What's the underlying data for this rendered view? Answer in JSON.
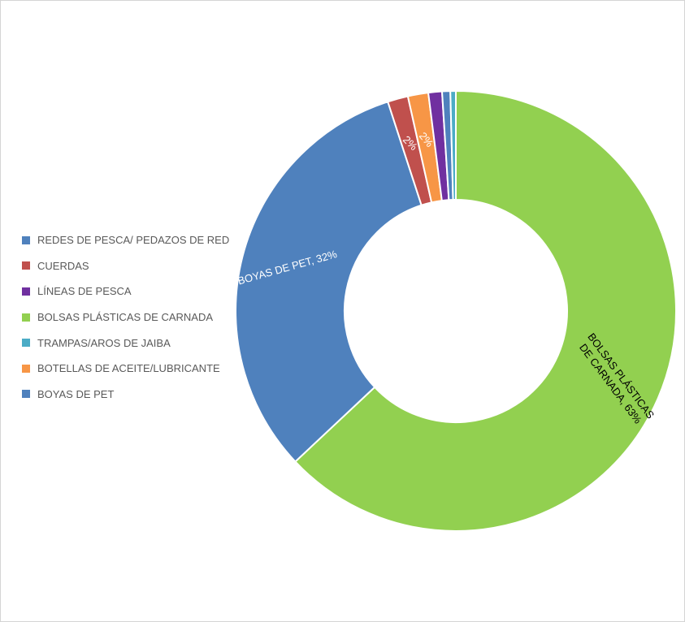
{
  "chart_data": {
    "type": "pie",
    "donut": true,
    "legend_position": "left",
    "slices": [
      {
        "label": "BOLSAS PLÁSTICAS DE CARNADA",
        "value": 63,
        "color": "#92d050",
        "data_label": [
          "BOLSAS PLÁSTICAS",
          "DE CARNADA, 63%"
        ],
        "label_color": "#000000"
      },
      {
        "label": "BOYAS DE PET",
        "value": 32,
        "color": "#4f81bd",
        "data_label": [
          "BOYAS DE PET, 32%"
        ],
        "label_color": "#ffffff"
      },
      {
        "label": "CUERDAS",
        "value": 1.5,
        "color": "#c0504d",
        "data_label": [
          "2%"
        ],
        "label_color": "#ffffff"
      },
      {
        "label": "BOTELLAS DE ACEITE/LUBRICANTE",
        "value": 1.5,
        "color": "#f79646",
        "data_label": [
          "2%"
        ],
        "label_color": "#ffffff"
      },
      {
        "label": "LÍNEAS DE PESCA",
        "value": 1.0,
        "color": "#7030a0",
        "data_label": [],
        "label_color": "#ffffff"
      },
      {
        "label": "REDES DE PESCA/ PEDAZOS DE RED",
        "value": 0.6,
        "color": "#4f81bd",
        "data_label": [],
        "label_color": "#ffffff"
      },
      {
        "label": "TRAMPAS/AROS DE JAIBA",
        "value": 0.4,
        "color": "#4bacc6",
        "data_label": [],
        "label_color": "#ffffff"
      }
    ]
  },
  "legend": {
    "items": [
      {
        "label": "REDES DE PESCA/ PEDAZOS DE RED",
        "color": "#4f81bd"
      },
      {
        "label": "CUERDAS",
        "color": "#c0504d"
      },
      {
        "label": "LÍNEAS DE PESCA",
        "color": "#7030a0"
      },
      {
        "label": "BOLSAS PLÁSTICAS DE CARNADA",
        "color": "#92d050"
      },
      {
        "label": "TRAMPAS/AROS DE JAIBA",
        "color": "#4bacc6"
      },
      {
        "label": "BOTELLAS DE ACEITE/LUBRICANTE",
        "color": "#f79646"
      },
      {
        "label": "BOYAS DE PET",
        "color": "#4f81bd"
      }
    ]
  }
}
